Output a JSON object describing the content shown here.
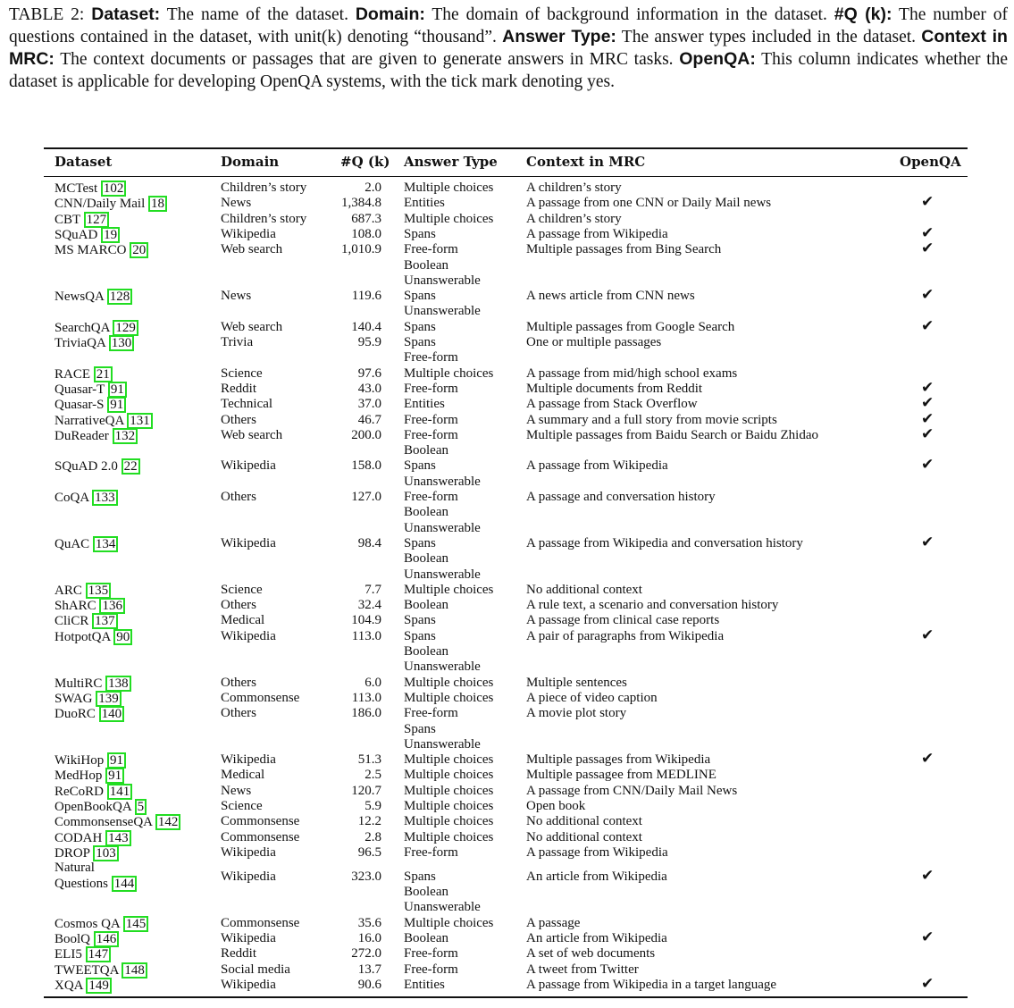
{
  "caption": {
    "table_label": "TABLE 2:",
    "items": [
      {
        "term": "Dataset:",
        "desc": "The name of the dataset."
      },
      {
        "term": "Domain:",
        "desc": "The domain of background information in the dataset."
      },
      {
        "term": "#Q (k):",
        "desc": "The number of questions contained in the dataset, with unit(k) denoting “thousand”."
      },
      {
        "term": "Answer Type:",
        "desc": "The answer types included in the dataset."
      },
      {
        "term": "Context in MRC:",
        "desc": "The context documents or passages that are given to generate answers in MRC tasks."
      },
      {
        "term": "OpenQA:",
        "desc": "This column indicates whether the dataset is applicable for developing OpenQA systems, with the tick mark denoting yes."
      }
    ]
  },
  "table": {
    "headers": {
      "dataset": "Dataset",
      "domain": "Domain",
      "nq": "#Q (k)",
      "answer_type": "Answer Type",
      "context": "Context in MRC",
      "openqa": "OpenQA"
    },
    "tick_symbol": "✔",
    "rows": [
      {
        "name": "MCTest",
        "ref": "102",
        "domain": "Children’s story",
        "nq": "2.0",
        "answer": [
          "Multiple choices"
        ],
        "context": "A children’s story",
        "openqa": false
      },
      {
        "name": "CNN/Daily Mail",
        "ref": "18",
        "domain": "News",
        "nq": "1,384.8",
        "answer": [
          "Entities"
        ],
        "context": "A passage from one CNN or Daily Mail news",
        "openqa": true
      },
      {
        "name": "CBT",
        "ref": "127",
        "domain": "Children’s story",
        "nq": "687.3",
        "answer": [
          "Multiple choices"
        ],
        "context": "A children’s story",
        "openqa": false
      },
      {
        "name": "SQuAD",
        "ref": "19",
        "domain": "Wikipedia",
        "nq": "108.0",
        "answer": [
          "Spans"
        ],
        "context": "A passage from Wikipedia",
        "openqa": true
      },
      {
        "name": "MS MARCO",
        "ref": "20",
        "domain": "Web search",
        "nq": "1,010.9",
        "answer": [
          "Free-form",
          "Boolean",
          "Unanswerable"
        ],
        "context": "Multiple passages from Bing Search",
        "openqa": true
      },
      {
        "name": "NewsQA",
        "ref": "128",
        "domain": "News",
        "nq": "119.6",
        "answer": [
          "Spans",
          "Unanswerable"
        ],
        "context": "A news article from CNN news",
        "openqa": true
      },
      {
        "name": "SearchQA",
        "ref": "129",
        "domain": "Web search",
        "nq": "140.4",
        "answer": [
          "Spans"
        ],
        "context": "Multiple passages from Google Search",
        "openqa": true
      },
      {
        "name": "TriviaQA",
        "ref": "130",
        "domain": "Trivia",
        "nq": "95.9",
        "answer": [
          "Spans",
          "Free-form"
        ],
        "context": "One or multiple passages",
        "openqa": false
      },
      {
        "name": "RACE",
        "ref": "21",
        "domain": "Science",
        "nq": "97.6",
        "answer": [
          "Multiple choices"
        ],
        "context": "A passage from mid/high school exams",
        "openqa": false
      },
      {
        "name": "Quasar-T",
        "ref": "91",
        "domain": "Reddit",
        "nq": "43.0",
        "answer": [
          "Free-form"
        ],
        "context": "Multiple documents from Reddit",
        "openqa": true
      },
      {
        "name": "Quasar-S",
        "ref": "91",
        "domain": "Technical",
        "nq": "37.0",
        "answer": [
          "Entities"
        ],
        "context": "A passage from Stack Overflow",
        "openqa": true
      },
      {
        "name": "NarrativeQA",
        "ref": "131",
        "domain": "Others",
        "nq": "46.7",
        "answer": [
          "Free-form"
        ],
        "context": "A summary and a full story from movie scripts",
        "openqa": true
      },
      {
        "name": "DuReader",
        "ref": "132",
        "domain": "Web search",
        "nq": "200.0",
        "answer": [
          "Free-form",
          "Boolean"
        ],
        "context": "Multiple passages from Baidu Search or Baidu Zhidao",
        "openqa": true
      },
      {
        "name": "SQuAD 2.0",
        "ref": "22",
        "domain": "Wikipedia",
        "nq": "158.0",
        "answer": [
          "Spans",
          "Unanswerable"
        ],
        "context": "A passage from Wikipedia",
        "openqa": true
      },
      {
        "name": "CoQA",
        "ref": "133",
        "domain": "Others",
        "nq": "127.0",
        "answer": [
          "Free-form",
          "Boolean",
          "Unanswerable"
        ],
        "context": "A passage and conversation history",
        "openqa": false
      },
      {
        "name": "QuAC",
        "ref": "134",
        "domain": "Wikipedia",
        "nq": "98.4",
        "answer": [
          "Spans",
          "Boolean",
          "Unanswerable"
        ],
        "context": "A passage from Wikipedia and conversation history",
        "openqa": true
      },
      {
        "name": "ARC",
        "ref": "135",
        "domain": "Science",
        "nq": "7.7",
        "answer": [
          "Multiple choices"
        ],
        "context": "No additional context",
        "openqa": false
      },
      {
        "name": "ShARC",
        "ref": "136",
        "domain": "Others",
        "nq": "32.4",
        "answer": [
          "Boolean"
        ],
        "context": "A rule text, a scenario and conversation history",
        "openqa": false
      },
      {
        "name": "CliCR",
        "ref": "137",
        "domain": "Medical",
        "nq": "104.9",
        "answer": [
          "Spans"
        ],
        "context": "A passage from clinical case reports",
        "openqa": false
      },
      {
        "name": "HotpotQA",
        "ref": "90",
        "domain": "Wikipedia",
        "nq": "113.0",
        "answer": [
          "Spans",
          "Boolean",
          "Unanswerable"
        ],
        "context": "A pair of paragraphs from Wikipedia",
        "openqa": true
      },
      {
        "name": "MultiRC",
        "ref": "138",
        "domain": "Others",
        "nq": "6.0",
        "answer": [
          "Multiple choices"
        ],
        "context": "Multiple sentences",
        "openqa": false
      },
      {
        "name": "SWAG",
        "ref": "139",
        "domain": "Commonsense",
        "nq": "113.0",
        "answer": [
          "Multiple choices"
        ],
        "context": "A piece of video caption",
        "openqa": false
      },
      {
        "name": "DuoRC",
        "ref": "140",
        "domain": "Others",
        "nq": "186.0",
        "answer": [
          "Free-form",
          "Spans",
          "Unanswerable"
        ],
        "context": "A movie plot story",
        "openqa": false
      },
      {
        "name": "WikiHop",
        "ref": "91",
        "domain": "Wikipedia",
        "nq": "51.3",
        "answer": [
          "Multiple choices"
        ],
        "context": "Multiple passages from Wikipedia",
        "openqa": true
      },
      {
        "name": "MedHop",
        "ref": "91",
        "domain": "Medical",
        "nq": "2.5",
        "answer": [
          "Multiple choices"
        ],
        "context": "Multiple passagee from MEDLINE",
        "openqa": false
      },
      {
        "name": "ReCoRD",
        "ref": "141",
        "domain": "News",
        "nq": "120.7",
        "answer": [
          "Multiple choices"
        ],
        "context": "A passage from CNN/Daily Mail News",
        "openqa": false
      },
      {
        "name": "OpenBookQA",
        "ref": "5",
        "domain": "Science",
        "nq": "5.9",
        "answer": [
          "Multiple choices"
        ],
        "context": "Open book",
        "openqa": false
      },
      {
        "name": "CommonsenseQA",
        "ref": "142",
        "domain": "Commonsense",
        "nq": "12.2",
        "answer": [
          "Multiple choices"
        ],
        "context": "No additional context",
        "openqa": false
      },
      {
        "name": "CODAH",
        "ref": "143",
        "domain": "Commonsense",
        "nq": "2.8",
        "answer": [
          "Multiple choices"
        ],
        "context": "No additional context",
        "openqa": false
      },
      {
        "name": "DROP",
        "ref": "103",
        "domain": "Wikipedia",
        "nq": "96.5",
        "answer": [
          "Free-form"
        ],
        "context": "A passage from Wikipedia",
        "openqa": false
      },
      {
        "name": "Natural Questions",
        "ref": "144",
        "domain": "Wikipedia",
        "nq": "323.0",
        "answer": [
          "Spans",
          "Boolean",
          "Unanswerable"
        ],
        "context": "An article from Wikipedia",
        "openqa": true
      },
      {
        "name": "Cosmos QA",
        "ref": "145",
        "domain": "Commonsense",
        "nq": "35.6",
        "answer": [
          "Multiple choices"
        ],
        "context": "A passage",
        "openqa": false
      },
      {
        "name": "BoolQ",
        "ref": "146",
        "domain": "Wikipedia",
        "nq": "16.0",
        "answer": [
          "Boolean"
        ],
        "context": "An article from Wikipedia",
        "openqa": true
      },
      {
        "name": "ELI5",
        "ref": "147",
        "domain": "Reddit",
        "nq": "272.0",
        "answer": [
          "Free-form"
        ],
        "context": "A set of web documents",
        "openqa": false
      },
      {
        "name": "TWEETQA",
        "ref": "148",
        "domain": "Social media",
        "nq": "13.7",
        "answer": [
          "Free-form"
        ],
        "context": "A tweet from Twitter",
        "openqa": false
      },
      {
        "name": "XQA",
        "ref": "149",
        "domain": "Wikipedia",
        "nq": "90.6",
        "answer": [
          "Entities"
        ],
        "context": "A passage from Wikipedia in a target language",
        "openqa": true
      }
    ]
  }
}
